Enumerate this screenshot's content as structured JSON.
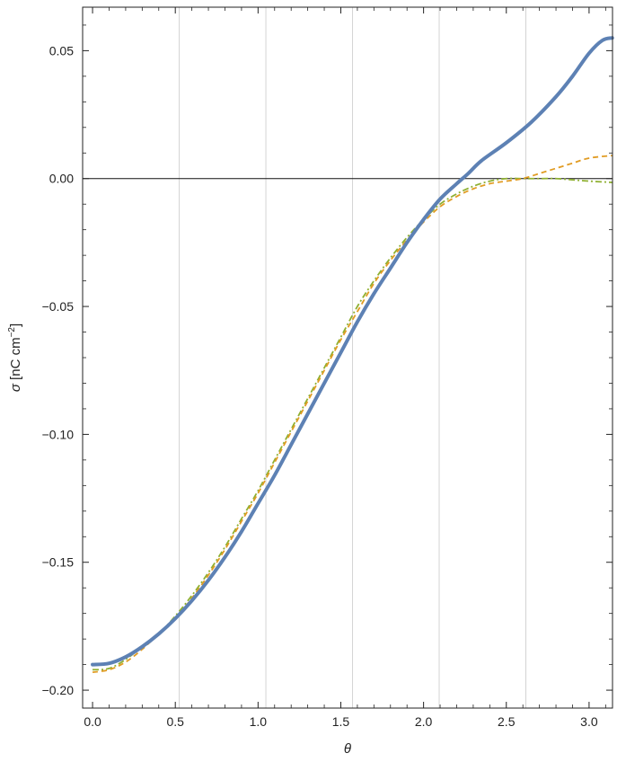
{
  "chart_data": {
    "type": "line",
    "xlabel_symbol": "θ",
    "ylabel": {
      "symbol": "σ",
      "unit_open": " [nC cm",
      "exponent": "−2",
      "unit_close": "]"
    },
    "xlim": [
      -0.06,
      3.14159
    ],
    "ylim": [
      -0.207,
      0.067
    ],
    "x_ticks": [
      {
        "value": 0.0,
        "label": "0.0"
      },
      {
        "value": 0.5,
        "label": "0.5"
      },
      {
        "value": 1.0,
        "label": "1.0"
      },
      {
        "value": 1.5,
        "label": "1.5"
      },
      {
        "value": 2.0,
        "label": "2.0"
      },
      {
        "value": 2.5,
        "label": "2.5"
      },
      {
        "value": 3.0,
        "label": "3.0"
      }
    ],
    "y_ticks": [
      {
        "value": 0.05,
        "label": "0.05"
      },
      {
        "value": 0.0,
        "label": "0.00"
      },
      {
        "value": -0.05,
        "label": "−0.05"
      },
      {
        "value": -0.1,
        "label": "−0.10"
      },
      {
        "value": -0.15,
        "label": "−0.15"
      },
      {
        "value": -0.2,
        "label": "−0.20"
      }
    ],
    "vertical_gridlines": [
      0.5236,
      1.0472,
      1.5708,
      2.0944,
      2.618
    ],
    "zero_line": 0.0,
    "series": [
      {
        "style": "solid",
        "color": "#5d81b4",
        "points": [
          [
            0.0,
            -0.19
          ],
          [
            0.1,
            -0.1895
          ],
          [
            0.2,
            -0.187
          ],
          [
            0.3,
            -0.183
          ],
          [
            0.4,
            -0.178
          ],
          [
            0.5,
            -0.172
          ],
          [
            0.6,
            -0.165
          ],
          [
            0.7,
            -0.157
          ],
          [
            0.8,
            -0.148
          ],
          [
            0.9,
            -0.138
          ],
          [
            1.0,
            -0.127
          ],
          [
            1.1,
            -0.116
          ],
          [
            1.2,
            -0.104
          ],
          [
            1.3,
            -0.092
          ],
          [
            1.4,
            -0.08
          ],
          [
            1.5,
            -0.068
          ],
          [
            1.6,
            -0.056
          ],
          [
            1.7,
            -0.045
          ],
          [
            1.8,
            -0.035
          ],
          [
            1.9,
            -0.025
          ],
          [
            2.0,
            -0.016
          ],
          [
            2.1,
            -0.008
          ],
          [
            2.2,
            -0.002
          ],
          [
            2.27,
            0.002
          ],
          [
            2.35,
            0.007
          ],
          [
            2.5,
            0.014
          ],
          [
            2.65,
            0.022
          ],
          [
            2.8,
            0.032
          ],
          [
            2.9,
            0.04
          ],
          [
            3.0,
            0.049
          ],
          [
            3.08,
            0.054
          ],
          [
            3.14,
            0.055
          ]
        ]
      },
      {
        "style": "dashed",
        "color": "#e19c24",
        "points": [
          [
            0.0,
            -0.193
          ],
          [
            0.1,
            -0.192
          ],
          [
            0.2,
            -0.189
          ],
          [
            0.3,
            -0.184
          ],
          [
            0.4,
            -0.178
          ],
          [
            0.5,
            -0.172
          ],
          [
            0.6,
            -0.164
          ],
          [
            0.7,
            -0.155
          ],
          [
            0.8,
            -0.145
          ],
          [
            0.9,
            -0.134
          ],
          [
            1.0,
            -0.123
          ],
          [
            1.1,
            -0.111
          ],
          [
            1.2,
            -0.099
          ],
          [
            1.3,
            -0.087
          ],
          [
            1.4,
            -0.075
          ],
          [
            1.5,
            -0.063
          ],
          [
            1.6,
            -0.052
          ],
          [
            1.7,
            -0.041
          ],
          [
            1.8,
            -0.032
          ],
          [
            1.9,
            -0.024
          ],
          [
            2.0,
            -0.017
          ],
          [
            2.1,
            -0.011
          ],
          [
            2.2,
            -0.007
          ],
          [
            2.3,
            -0.004
          ],
          [
            2.4,
            -0.002
          ],
          [
            2.5,
            -0.001
          ],
          [
            2.6,
            0.0
          ],
          [
            2.7,
            0.002
          ],
          [
            2.8,
            0.004
          ],
          [
            2.9,
            0.006
          ],
          [
            3.0,
            0.008
          ],
          [
            3.14,
            0.009
          ]
        ]
      },
      {
        "style": "dashdot",
        "color": "#8fb032",
        "points": [
          [
            0.0,
            -0.192
          ],
          [
            0.1,
            -0.1915
          ],
          [
            0.2,
            -0.188
          ],
          [
            0.3,
            -0.183
          ],
          [
            0.4,
            -0.178
          ],
          [
            0.5,
            -0.171
          ],
          [
            0.6,
            -0.163
          ],
          [
            0.7,
            -0.154
          ],
          [
            0.8,
            -0.144
          ],
          [
            0.9,
            -0.133
          ],
          [
            1.0,
            -0.122
          ],
          [
            1.1,
            -0.11
          ],
          [
            1.2,
            -0.098
          ],
          [
            1.3,
            -0.086
          ],
          [
            1.4,
            -0.074
          ],
          [
            1.5,
            -0.062
          ],
          [
            1.6,
            -0.05
          ],
          [
            1.7,
            -0.04
          ],
          [
            1.8,
            -0.031
          ],
          [
            1.9,
            -0.023
          ],
          [
            2.0,
            -0.016
          ],
          [
            2.1,
            -0.01
          ],
          [
            2.2,
            -0.006
          ],
          [
            2.3,
            -0.003
          ],
          [
            2.4,
            -0.001
          ],
          [
            2.5,
            0.0
          ],
          [
            2.6,
            0.0
          ],
          [
            2.7,
            0.0
          ],
          [
            2.8,
            0.0
          ],
          [
            2.9,
            -0.0005
          ],
          [
            3.0,
            -0.001
          ],
          [
            3.14,
            -0.0015
          ]
        ]
      }
    ]
  }
}
